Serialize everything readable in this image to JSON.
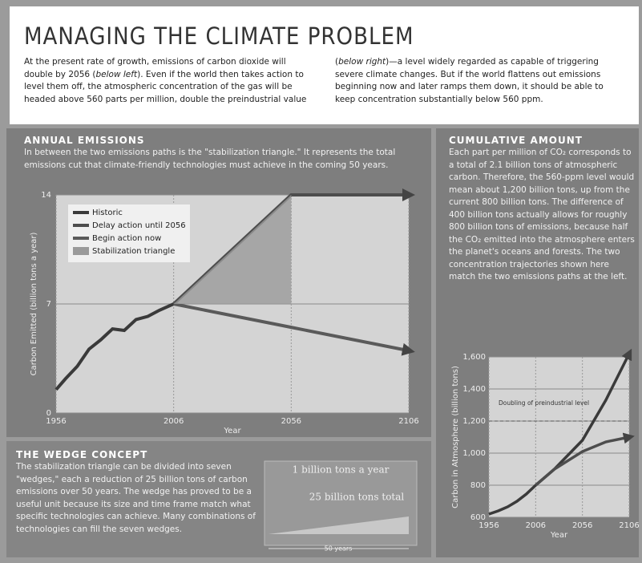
{
  "header": {
    "title": "MANAGING THE CLIMATE PROBLEM",
    "intro": [
      "At the present rate of growth, emissions of carbon dioxide will double by 2056 (",
      "below left",
      "). Even if the world then takes action to level them off, the atmospheric concentration of the gas will be headed above 560 parts per million, double the preindustrial value (",
      "below right",
      ")—a level widely regarded as capable of triggering severe climate changes. But if the world flattens out emissions beginning now and later ramps them down, it should be able to keep concentration substantially below 560 ppm."
    ]
  },
  "annual": {
    "heading": "ANNUAL EMISSIONS",
    "text": "In between the two emissions paths is the \"stabilization triangle.\" It represents the total emissions cut that climate-friendly technologies must achieve in the coming 50 years."
  },
  "cumulative": {
    "heading": "CUMULATIVE AMOUNT",
    "text": "Each part per million of CO₂ corresponds to a total of 2.1 billion tons of atmospheric carbon. Therefore, the 560-ppm level would mean about 1,200 billion tons, up from the current 800 billion tons. The difference of 400 billion tons actually allows for roughly 800 billion tons of emissions, because half the CO₂ emitted into the atmosphere enters the planet's oceans and forests. The two concentration trajectories shown here match the two emissions paths at the left."
  },
  "wedge": {
    "heading": "THE WEDGE CONCEPT",
    "text": "The stabilization triangle can be divided into seven \"wedges,\" each a reduction of 25 billion tons of carbon emissions over 50 years. The wedge has proved to be a useful unit because its size and time frame match what specific technologies can achieve. Many combinations of technologies can fill the seven wedges.",
    "rate_label": "1 billion tons a year",
    "total_label": "25 billion tons total",
    "span_label": "50 years"
  },
  "chart_data": [
    {
      "type": "line",
      "x_label": "Year",
      "y_label": "Carbon Emitted (billion tons a year)",
      "x": [
        1956,
        1960,
        1965,
        1970,
        1975,
        1980,
        1985,
        1990,
        1995,
        2000,
        2006,
        2056,
        2106
      ],
      "xlim": [
        1956,
        2106
      ],
      "xticks": [
        1956,
        2006,
        2056,
        2106
      ],
      "ylim": [
        0,
        14
      ],
      "yticks": [
        0,
        7,
        14
      ],
      "series": [
        {
          "name": "Historic",
          "color": "#3a3a3a",
          "values": [
            1.5,
            2.2,
            3.0,
            4.1,
            4.7,
            5.4,
            5.3,
            6.0,
            6.2,
            6.6,
            7,
            null,
            null
          ]
        },
        {
          "name": "Delay action until 2056",
          "color": "#4d4d4d",
          "values": [
            null,
            null,
            null,
            null,
            null,
            null,
            null,
            null,
            null,
            null,
            7,
            14,
            14
          ]
        },
        {
          "name": "Begin action now",
          "color": "#5a5a5a",
          "values": [
            null,
            null,
            null,
            null,
            null,
            null,
            null,
            null,
            null,
            null,
            7,
            5.5,
            4
          ]
        },
        {
          "name": "Stabilization triangle",
          "color": "#9a9a9a",
          "area": true,
          "values": [
            null,
            null,
            null,
            null,
            null,
            null,
            null,
            null,
            null,
            null,
            7,
            14,
            null
          ],
          "lower": [
            null,
            null,
            null,
            null,
            null,
            null,
            null,
            null,
            null,
            null,
            7,
            7,
            null
          ]
        }
      ]
    },
    {
      "type": "line",
      "x_label": "Year",
      "y_label": "Carbon in Atmosphere (billion tons)",
      "x": [
        1956,
        1966,
        1976,
        1986,
        1996,
        2006,
        2026,
        2056,
        2081,
        2106
      ],
      "xlim": [
        1956,
        2106
      ],
      "xticks": [
        1956,
        2006,
        2056,
        2106
      ],
      "ylim": [
        600,
        1600
      ],
      "yticks": [
        {
          "value": 600,
          "label": "600"
        },
        {
          "value": 800,
          "label": "800"
        },
        {
          "value": 1000,
          "label": "1,000"
        },
        {
          "value": 1200,
          "label": "1,200"
        },
        {
          "value": 1400,
          "label": "1,400"
        },
        {
          "value": 1600,
          "label": "1,600"
        }
      ],
      "reference": {
        "value": 1200,
        "label": "Doubling of preindustrial level"
      },
      "series": [
        {
          "name": "Delay action until 2056",
          "color": "#3a3a3a",
          "values": [
            620,
            640,
            665,
            700,
            745,
            800,
            900,
            1080,
            1330,
            1620
          ]
        },
        {
          "name": "Begin action now",
          "color": "#4d4d4d",
          "values": [
            null,
            null,
            null,
            null,
            null,
            800,
            900,
            1010,
            1070,
            1100
          ]
        }
      ]
    }
  ]
}
